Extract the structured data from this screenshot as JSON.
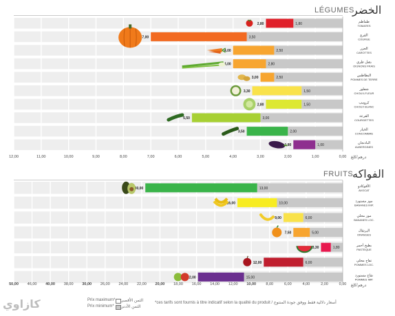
{
  "chart_data": [
    {
      "type": "bar",
      "title_fr": "LÉGUMES",
      "title_ar": "الخضر",
      "unit_label": "درهم/كلغ",
      "axis": {
        "xlim": [
          0,
          12
        ],
        "ticks": [
          "12,00",
          "11,00",
          "10,00",
          "9,00",
          "8,00",
          "7,00",
          "6,00",
          "5,00",
          "4,00",
          "3,00",
          "2,00",
          "1,00",
          "0,00"
        ]
      },
      "categories": [
        {
          "ar": "طماطم",
          "fr": "TOMATES",
          "values": [
            2.8,
            1.8
          ],
          "labels": [
            "2,80",
            "1,80"
          ],
          "color": "#e0202a",
          "icon": "tomato-icon"
        },
        {
          "ar": "القرع",
          "fr": "COURGE",
          "values": [
            7.0,
            3.5
          ],
          "labels": [
            "7,00",
            "3,50"
          ],
          "color": "#f26a21",
          "icon": "pumpkin-icon"
        },
        {
          "ar": "الجزر",
          "fr": "CAROTTES",
          "values": [
            4.0,
            2.5
          ],
          "labels": [
            "4,00",
            "2,50"
          ],
          "color": "#f7a530",
          "icon": "carrot-icon"
        },
        {
          "ar": "بصل طري",
          "fr": "OIGNONS FRAIS",
          "values": [
            4.0,
            2.8
          ],
          "labels": [
            "4,00",
            "2,80"
          ],
          "color": "#f7a530",
          "icon": "green-onion-icon"
        },
        {
          "ar": "البطاطس",
          "fr": "POMMES DE TERRE",
          "values": [
            3.0,
            2.5
          ],
          "labels": [
            "3,00",
            "2,50"
          ],
          "color": "#f7a530",
          "icon": "potato-icon"
        },
        {
          "ar": "شفلور",
          "fr": "CHOUX-FLEUR",
          "values": [
            3.3,
            1.5
          ],
          "labels": [
            "3,30",
            "1,50"
          ],
          "color": "#f9e24a",
          "icon": "cauliflower-icon"
        },
        {
          "ar": "كرومب",
          "fr": "CHOUX BLANC",
          "values": [
            2.8,
            1.5
          ],
          "labels": [
            "2,80",
            "1,50"
          ],
          "color": "#dde832",
          "icon": "cabbage-icon"
        },
        {
          "ar": "القرعة",
          "fr": "COURGETTES",
          "values": [
            5.5,
            3.0
          ],
          "labels": [
            "5,50",
            "3,00"
          ],
          "color": "#a7d033",
          "icon": "zucchini-icon"
        },
        {
          "ar": "الخيار",
          "fr": "CONCOMBRE",
          "values": [
            3.5,
            2.0
          ],
          "labels": [
            "3,50",
            "2,00"
          ],
          "color": "#3ab44a",
          "icon": "cucumber-icon"
        },
        {
          "ar": "الباذنجان",
          "fr": "AUBERGINES",
          "values": [
            1.8,
            1.0
          ],
          "labels": [
            "1,80",
            "1,00"
          ],
          "color": "#8e2f8f",
          "icon": "eggplant-icon"
        }
      ]
    },
    {
      "type": "bar",
      "title_fr": "FRUITS",
      "title_ar": "الفواكه",
      "unit_label": "درهم/كلغ",
      "axis": {
        "xlim": [
          0,
          50
        ],
        "ticks": [
          "50,00",
          "46,00",
          "40,00",
          "38,00",
          "30,00",
          "26,00",
          "24,00",
          "22,00",
          "20,00",
          "18,00",
          "16,00",
          "14,00",
          "12,00",
          "10,00",
          "8,00",
          "6,00",
          "4,00",
          "2,00",
          "0,00"
        ]
      },
      "categories": [
        {
          "ar": "الأفوكادو",
          "fr": "AVOCAT",
          "values": [
            30.0,
            13.0
          ],
          "labels": [
            "30,00",
            "13,00"
          ],
          "color": "#3ab44a",
          "icon": "avocado-icon"
        },
        {
          "ar": "موز مستورد",
          "fr": "BANANES IMP.",
          "values": [
            16.0,
            10.0
          ],
          "labels": [
            "16,00",
            "10,00"
          ],
          "color": "#f7ec22",
          "icon": "banana-bunch-icon"
        },
        {
          "ar": "موز محلي",
          "fr": "BANANES LOC.",
          "values": [
            9.0,
            6.0
          ],
          "labels": [
            "9,00",
            "6,00"
          ],
          "color": "#f9e24a",
          "icon": "banana-icon"
        },
        {
          "ar": "البرتقال",
          "fr": "ORANGES",
          "values": [
            7.5,
            5.0
          ],
          "labels": [
            "7,50",
            "5,00"
          ],
          "color": "#f7a530",
          "icon": "orange-icon"
        },
        {
          "ar": "بطيخ أحمر",
          "fr": "PASTEQUE",
          "values": [
            3.3,
            1.8
          ],
          "labels": [
            "3,30",
            "1,80"
          ],
          "color": "#e8194f",
          "icon": "watermelon-icon"
        },
        {
          "ar": "تفاح محلي",
          "fr": "POMMES LOC.",
          "values": [
            12.0,
            6.0
          ],
          "labels": [
            "12,00",
            "6,00"
          ],
          "color": "#c01f2f",
          "icon": "apple-icon"
        },
        {
          "ar": "تفاح مستورد",
          "fr": "POMMES IMP.",
          "values": [
            22.0,
            15.0
          ],
          "labels": [
            "22,00",
            "15,00"
          ],
          "color": "#6b2f8f",
          "icon": "apples-icon"
        }
      ]
    }
  ],
  "footer": {
    "legend_max_fr": "Prix maximum*",
    "legend_max_ar": "الثمن الأقصى",
    "legend_min_fr": "Prix minimum*",
    "legend_min_ar": "الثمن الأدنى",
    "note": "*ces tarifs sont fournis à titre indicatif selon la qualité du produit /  أسعار دلالية فقط ووفق جودة المنتوج"
  },
  "colors": {
    "grey_bar": "#c8c8c8",
    "row_bg": "#eeeeee",
    "grid": "#ffffff"
  }
}
